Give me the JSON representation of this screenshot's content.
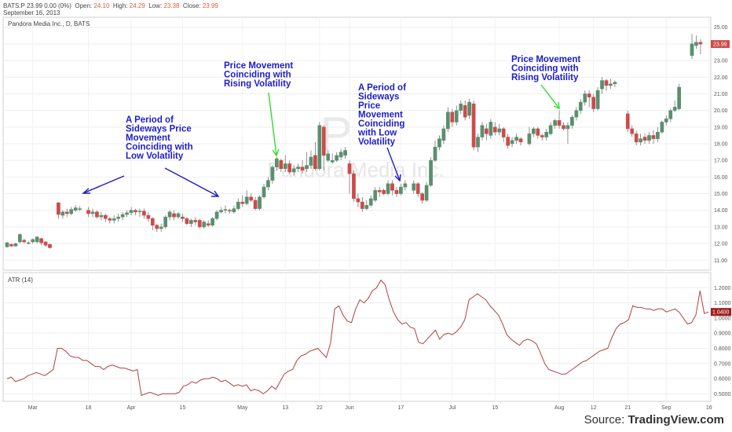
{
  "header": {
    "symbol": "BATS:P",
    "last": "23.99",
    "change": "0.00 (0%)",
    "open_label": "Open:",
    "open": "24.10",
    "high_label": "High:",
    "high": "24.29",
    "low_label": "Low:",
    "low": "23.38",
    "close_label": "Close:",
    "close": "23.99",
    "date": "September 16, 2013"
  },
  "source": {
    "label": "Source:",
    "name": "TradingView.com"
  },
  "colors": {
    "up": "#5a8f6e",
    "down": "#cc4b4b",
    "atr_line": "#b04040",
    "annotation": "#1d1dc9",
    "arrow_green": "#33dd33"
  },
  "chart_data": [
    {
      "type": "candlestick",
      "title": "Pandora Media Inc., D, BATS",
      "watermark_symbol": "P",
      "watermark_name": "Pandora Media Inc.",
      "ylim": [
        10.4,
        25.6
      ],
      "y_ticks": [
        "11.00",
        "12.00",
        "13.00",
        "14.00",
        "15.00",
        "16.00",
        "17.00",
        "18.00",
        "19.00",
        "20.00",
        "21.00",
        "22.00",
        "23.00",
        "24.00",
        "25.00"
      ],
      "last_price_label": "23.99",
      "x_ticks": [
        {
          "i": 6,
          "label": "Mar"
        },
        {
          "i": 19,
          "label": "18"
        },
        {
          "i": 29,
          "label": "Apr"
        },
        {
          "i": 41,
          "label": "15"
        },
        {
          "i": 55,
          "label": "May"
        },
        {
          "i": 65,
          "label": "13"
        },
        {
          "i": 73,
          "label": "22"
        },
        {
          "i": 80,
          "label": "Jun"
        },
        {
          "i": 92,
          "label": "17"
        },
        {
          "i": 104,
          "label": "Jul"
        },
        {
          "i": 114,
          "label": "15"
        },
        {
          "i": 129,
          "label": "Aug"
        },
        {
          "i": 137,
          "label": "12"
        },
        {
          "i": 145,
          "label": "21"
        },
        {
          "i": 154,
          "label": "Sep"
        },
        {
          "i": 164,
          "label": "16"
        }
      ],
      "candles": [
        [
          11.8,
          12.05,
          11.75,
          12.1
        ],
        [
          11.95,
          11.85,
          11.8,
          12.0
        ],
        [
          11.85,
          12.0,
          11.8,
          12.05
        ],
        [
          12.1,
          12.55,
          12.0,
          12.6
        ],
        [
          12.2,
          12.1,
          12.0,
          12.3
        ],
        [
          12.0,
          12.05,
          11.95,
          12.15
        ],
        [
          12.1,
          12.25,
          12.0,
          12.3
        ],
        [
          12.1,
          12.4,
          12.0,
          12.45
        ],
        [
          12.3,
          12.05,
          11.9,
          12.35
        ],
        [
          12.1,
          11.9,
          11.8,
          12.15
        ],
        [
          11.95,
          11.75,
          11.7,
          12.0
        ],
        null,
        [
          14.45,
          13.75,
          13.5,
          14.5
        ],
        [
          13.7,
          13.9,
          13.5,
          14.0
        ],
        [
          13.9,
          13.8,
          13.6,
          14.1
        ],
        [
          13.8,
          14.05,
          13.7,
          14.2
        ],
        [
          14.0,
          14.15,
          13.9,
          14.3
        ],
        [
          14.1,
          14.1,
          13.95,
          14.25
        ],
        null,
        [
          14.0,
          13.8,
          13.6,
          14.2
        ],
        [
          13.8,
          13.9,
          13.6,
          14.1
        ],
        [
          13.9,
          13.6,
          13.5,
          14.0
        ],
        [
          13.6,
          13.7,
          13.4,
          13.9
        ],
        [
          13.7,
          13.5,
          13.3,
          13.8
        ],
        [
          13.5,
          13.4,
          13.2,
          13.6
        ],
        [
          13.4,
          13.5,
          13.2,
          13.7
        ],
        [
          13.5,
          13.6,
          13.3,
          13.8
        ],
        [
          13.6,
          13.75,
          13.4,
          13.9
        ],
        [
          13.75,
          13.85,
          13.6,
          14.0
        ],
        [
          13.85,
          14.0,
          13.7,
          14.2
        ],
        [
          14.0,
          13.9,
          13.7,
          14.1
        ],
        [
          13.9,
          13.95,
          13.6,
          14.1
        ],
        [
          13.95,
          13.7,
          13.5,
          14.1
        ],
        [
          13.7,
          13.5,
          13.3,
          13.9
        ],
        [
          13.5,
          13.1,
          12.8,
          13.6
        ],
        [
          13.1,
          12.9,
          12.7,
          13.2
        ],
        [
          12.9,
          13.0,
          12.7,
          13.2
        ],
        [
          13.0,
          13.6,
          12.9,
          13.7
        ],
        [
          13.6,
          13.9,
          13.4,
          14.0
        ],
        [
          13.8,
          13.6,
          13.4,
          14.0
        ],
        [
          13.6,
          13.8,
          13.5,
          13.9
        ],
        [
          13.6,
          13.5,
          13.3,
          13.8
        ],
        [
          13.5,
          13.2,
          13.1,
          13.6
        ],
        [
          13.2,
          13.4,
          13.0,
          13.5
        ],
        [
          13.4,
          13.3,
          13.1,
          13.6
        ],
        [
          13.4,
          13.0,
          12.9,
          13.5
        ],
        [
          13.0,
          13.3,
          12.9,
          13.4
        ],
        [
          13.2,
          13.1,
          13.0,
          13.4
        ],
        [
          13.1,
          13.5,
          13.0,
          13.6
        ],
        [
          13.5,
          13.9,
          13.4,
          14.0
        ],
        [
          13.9,
          14.0,
          13.8,
          14.2
        ],
        [
          14.0,
          14.05,
          13.8,
          14.3
        ],
        [
          14.0,
          13.95,
          13.8,
          14.1
        ],
        [
          13.9,
          14.1,
          13.8,
          14.3
        ],
        [
          14.1,
          14.5,
          14.0,
          14.7
        ],
        [
          14.5,
          14.4,
          14.2,
          14.9
        ],
        [
          14.4,
          14.8,
          14.3,
          15.2
        ],
        [
          14.8,
          14.6,
          14.5,
          15.0
        ],
        [
          14.6,
          14.1,
          14.0,
          14.8
        ],
        [
          14.1,
          14.8,
          14.0,
          14.9
        ],
        [
          14.8,
          15.4,
          14.7,
          15.6
        ],
        [
          15.4,
          15.8,
          15.2,
          16.0
        ],
        [
          15.8,
          16.6,
          15.6,
          16.7
        ],
        [
          16.6,
          17.1,
          16.4,
          17.2
        ],
        [
          17.0,
          16.5,
          16.3,
          17.1
        ],
        [
          16.5,
          16.8,
          16.3,
          17.3
        ],
        [
          16.8,
          16.3,
          16.2,
          17.0
        ],
        [
          16.3,
          16.5,
          16.1,
          16.7
        ],
        [
          16.5,
          16.6,
          16.3,
          16.8
        ],
        [
          16.6,
          16.4,
          16.2,
          17.0
        ],
        [
          16.5,
          16.7,
          16.3,
          17.5
        ],
        [
          16.7,
          17.2,
          16.5,
          17.6
        ],
        [
          17.3,
          16.5,
          16.4,
          18.1
        ],
        [
          16.5,
          19.1,
          16.4,
          19.3
        ],
        [
          19.0,
          17.3,
          16.4,
          19.1
        ],
        [
          17.0,
          17.4,
          16.9,
          17.6
        ],
        [
          16.9,
          17.0,
          16.8,
          17.4
        ],
        [
          17.0,
          17.3,
          16.9,
          17.5
        ],
        [
          17.2,
          17.5,
          17.0,
          17.7
        ],
        [
          17.3,
          17.6,
          17.1,
          17.8
        ],
        [
          16.8,
          16.2,
          15.0,
          17.0
        ],
        [
          16.2,
          14.7,
          14.5,
          16.4
        ],
        [
          14.7,
          14.5,
          14.2,
          15.0
        ],
        [
          14.5,
          14.1,
          13.9,
          14.8
        ],
        [
          14.1,
          14.3,
          14.0,
          14.6
        ],
        [
          14.3,
          14.7,
          14.2,
          14.9
        ],
        [
          14.6,
          15.2,
          14.5,
          15.4
        ],
        [
          15.2,
          15.1,
          14.8,
          15.4
        ],
        [
          15.2,
          15.0,
          14.9,
          15.3
        ],
        [
          15.0,
          15.6,
          14.9,
          15.8
        ],
        [
          15.6,
          15.2,
          14.9,
          15.8
        ],
        [
          15.2,
          15.0,
          14.8,
          15.4
        ],
        [
          15.0,
          15.4,
          14.9,
          15.6
        ],
        [
          15.4,
          15.6,
          15.2,
          15.8
        ],
        null,
        [
          15.2,
          15.6,
          15.0,
          15.8
        ],
        [
          15.6,
          15.0,
          14.8,
          15.7
        ],
        [
          15.0,
          14.6,
          14.4,
          15.1
        ],
        [
          14.6,
          15.5,
          14.5,
          15.7
        ],
        [
          15.5,
          17.0,
          15.4,
          17.2
        ],
        [
          17.0,
          17.8,
          16.9,
          18.2
        ],
        [
          17.8,
          18.3,
          17.6,
          18.5
        ],
        [
          18.2,
          18.9,
          18.0,
          19.1
        ],
        [
          18.9,
          19.9,
          18.7,
          20.2
        ],
        [
          19.9,
          19.3,
          19.0,
          20.1
        ],
        [
          19.3,
          20.0,
          19.1,
          20.3
        ],
        [
          20.0,
          20.4,
          19.8,
          20.6
        ],
        [
          20.3,
          19.6,
          19.4,
          20.6
        ],
        [
          19.7,
          20.5,
          19.5,
          20.7
        ],
        [
          20.4,
          17.8,
          17.6,
          20.6
        ],
        [
          17.8,
          18.4,
          17.5,
          18.6
        ],
        [
          18.4,
          19.1,
          18.2,
          19.3
        ],
        [
          18.9,
          18.6,
          18.2,
          19.2
        ],
        [
          18.5,
          19.3,
          18.3,
          19.5
        ],
        [
          19.0,
          18.7,
          18.5,
          19.3
        ],
        [
          18.7,
          18.9,
          18.5,
          19.2
        ],
        [
          18.9,
          18.4,
          18.1,
          19.0
        ],
        [
          18.4,
          17.9,
          17.7,
          18.6
        ],
        [
          18.0,
          18.2,
          17.8,
          18.4
        ],
        [
          18.2,
          18.4,
          18.0,
          18.6
        ],
        [
          18.3,
          18.1,
          17.9,
          18.4
        ],
        null,
        [
          18.0,
          18.6,
          17.9,
          19.0
        ],
        [
          18.6,
          18.9,
          18.4,
          19.0
        ],
        [
          18.9,
          18.5,
          18.3,
          19.0
        ],
        [
          18.5,
          18.4,
          18.2,
          18.6
        ],
        [
          18.4,
          18.7,
          18.2,
          18.9
        ],
        [
          18.6,
          19.1,
          18.5,
          19.3
        ],
        [
          19.1,
          19.4,
          18.9,
          19.5
        ],
        [
          19.4,
          19.1,
          18.9,
          20.0
        ],
        [
          19.1,
          18.9,
          18.8,
          19.3
        ],
        [
          18.9,
          19.1,
          18.0,
          19.3
        ],
        [
          19.1,
          19.6,
          18.9,
          19.7
        ],
        [
          19.6,
          20.0,
          19.4,
          20.2
        ],
        [
          20.0,
          20.5,
          19.8,
          20.7
        ],
        [
          20.5,
          21.0,
          20.3,
          21.2
        ],
        [
          21.0,
          20.8,
          20.2,
          21.2
        ],
        [
          20.8,
          20.1,
          19.9,
          21.0
        ],
        [
          20.1,
          21.2,
          20.0,
          21.4
        ],
        [
          21.3,
          21.8,
          21.0,
          22.0
        ],
        [
          21.8,
          21.5,
          21.2,
          21.9
        ],
        [
          21.5,
          21.6,
          21.3,
          21.9
        ],
        [
          21.6,
          21.7,
          21.4,
          21.8
        ],
        null,
        null,
        [
          19.8,
          18.9,
          18.7,
          20.0
        ],
        [
          18.9,
          18.6,
          18.4,
          19.1
        ],
        [
          18.6,
          18.1,
          17.9,
          18.8
        ],
        [
          18.1,
          18.3,
          17.9,
          18.6
        ],
        [
          18.4,
          18.2,
          18.0,
          18.6
        ],
        [
          18.2,
          18.5,
          18.0,
          18.7
        ],
        [
          18.5,
          18.3,
          18.0,
          18.8
        ],
        [
          18.3,
          18.7,
          18.1,
          19.0
        ],
        [
          18.7,
          19.3,
          18.6,
          19.4
        ],
        [
          19.3,
          19.5,
          19.1,
          19.7
        ],
        [
          19.5,
          20.0,
          19.3,
          20.1
        ],
        [
          20.0,
          20.2,
          19.9,
          20.6
        ],
        [
          20.1,
          21.4,
          20.0,
          21.6
        ],
        null,
        null,
        [
          23.3,
          24.0,
          23.1,
          24.6
        ],
        [
          23.9,
          24.1,
          23.7,
          24.5
        ],
        [
          24.1,
          23.99,
          23.38,
          24.29
        ]
      ]
    },
    {
      "type": "line",
      "title": "ATR (14)",
      "ylim": [
        0.45,
        1.3
      ],
      "y_ticks": [
        "0.5000",
        "0.6000",
        "0.7000",
        "0.8000",
        "0.9000",
        "1.0000",
        "1.1000",
        "1.2000"
      ],
      "last_value_label": "1.0400",
      "values": [
        0.6,
        0.61,
        0.58,
        0.59,
        0.6,
        0.62,
        0.63,
        0.64,
        0.63,
        0.62,
        0.64,
        0.66,
        0.8,
        0.8,
        0.78,
        0.75,
        0.74,
        0.74,
        0.72,
        0.72,
        0.7,
        0.68,
        0.68,
        0.66,
        0.68,
        0.69,
        0.68,
        0.67,
        0.67,
        0.66,
        0.65,
        0.66,
        0.49,
        0.5,
        0.51,
        0.5,
        0.49,
        0.5,
        0.5,
        0.5,
        0.5,
        0.51,
        0.55,
        0.56,
        0.58,
        0.57,
        0.59,
        0.6,
        0.6,
        0.61,
        0.6,
        0.58,
        0.59,
        0.57,
        0.55,
        0.56,
        0.55,
        0.56,
        0.52,
        0.53,
        0.52,
        0.5,
        0.52,
        0.55,
        0.53,
        0.58,
        0.63,
        0.65,
        0.66,
        0.72,
        0.75,
        0.76,
        0.78,
        0.79,
        0.8,
        0.77,
        0.74,
        0.83,
        1.06,
        1.08,
        1.02,
        0.98,
        0.97,
        1.06,
        1.12,
        1.1,
        1.13,
        1.18,
        1.2,
        1.25,
        1.22,
        1.12,
        1.04,
        0.99,
        0.96,
        0.97,
        0.94,
        0.93,
        0.84,
        0.83,
        0.86,
        0.89,
        0.92,
        0.86,
        0.89,
        0.9,
        0.89,
        0.91,
        0.94,
        0.99,
        1.12,
        1.14,
        1.16,
        1.14,
        1.12,
        1.08,
        1.05,
        1.02,
        0.96,
        0.89,
        0.86,
        0.84,
        0.82,
        0.85,
        0.86,
        0.85,
        0.83,
        0.77,
        0.7,
        0.66,
        0.65,
        0.64,
        0.63,
        0.63,
        0.65,
        0.67,
        0.69,
        0.71,
        0.72,
        0.74,
        0.76,
        0.78,
        0.79,
        0.8,
        0.87,
        0.93,
        0.96,
        0.97,
        0.99,
        1.08,
        1.07,
        1.07,
        1.06,
        1.06,
        1.05,
        1.06,
        1.06,
        1.04,
        1.05,
        1.06,
        1.04,
        1.0,
        0.96,
        0.97,
        1.02,
        1.18,
        1.03,
        1.04
      ]
    }
  ]
}
